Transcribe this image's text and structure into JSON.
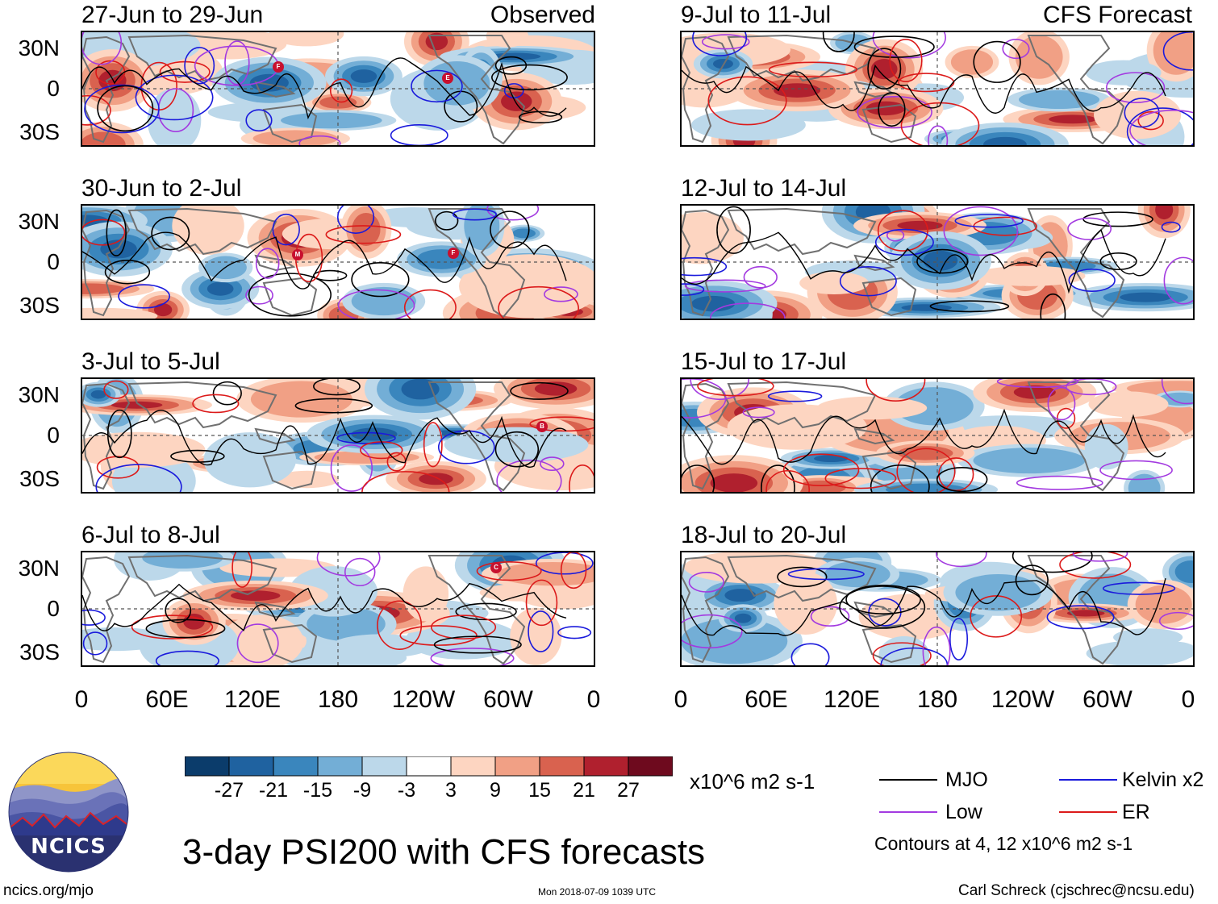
{
  "panels": [
    {
      "title": "27-Jun to 29-Jun",
      "tag": "Observed"
    },
    {
      "title": "30-Jun to 2-Jul",
      "tag": ""
    },
    {
      "title": "3-Jul to 5-Jul",
      "tag": ""
    },
    {
      "title": "6-Jul to 8-Jul",
      "tag": ""
    },
    {
      "title": "9-Jul to 11-Jul",
      "tag": "CFS Forecast"
    },
    {
      "title": "12-Jul to 14-Jul",
      "tag": ""
    },
    {
      "title": "15-Jul to 17-Jul",
      "tag": ""
    },
    {
      "title": "18-Jul to 20-Jul",
      "tag": ""
    }
  ],
  "lat_labels": [
    "30N",
    "0",
    "30S"
  ],
  "lon_labels": [
    "0",
    "60E",
    "120E",
    "180",
    "120W",
    "60W",
    "0"
  ],
  "colorbar": {
    "ticks": [
      "-27",
      "-21",
      "-15",
      "-9",
      "-3",
      "3",
      "9",
      "15",
      "21",
      "27"
    ],
    "colors": [
      "#0b3c6b",
      "#1f62a0",
      "#3a86bd",
      "#73aed6",
      "#bcd8ea",
      "#ffffff",
      "#fdd5c1",
      "#f1a085",
      "#d9624f",
      "#b0202e",
      "#6e0a1e"
    ],
    "unit": "x10^6 m2 s-1"
  },
  "legend": {
    "items": [
      {
        "label": "MJO",
        "color": "#000000"
      },
      {
        "label": "Kelvin x2",
        "color": "#1a1adc"
      },
      {
        "label": "Low",
        "color": "#a33ae0"
      },
      {
        "label": "ER",
        "color": "#dc1a1a"
      }
    ],
    "note": "Contours at 4, 12 x10^6 m2 s-1"
  },
  "logo": {
    "text": "NCICS"
  },
  "title": "3-day PSI200 with CFS forecasts",
  "footer": {
    "left": "ncics.org/mjo",
    "center": "Mon 2018-07-09 1039 UTC",
    "right": "Carl Schreck (cjschrec@ncsu.edu)"
  },
  "storm_markers": [
    {
      "panel": 0,
      "label": "F"
    },
    {
      "panel": 0,
      "label": "E"
    },
    {
      "panel": 1,
      "label": "M"
    },
    {
      "panel": 1,
      "label": "F"
    },
    {
      "panel": 2,
      "label": "B"
    },
    {
      "panel": 3,
      "label": "C"
    }
  ]
}
